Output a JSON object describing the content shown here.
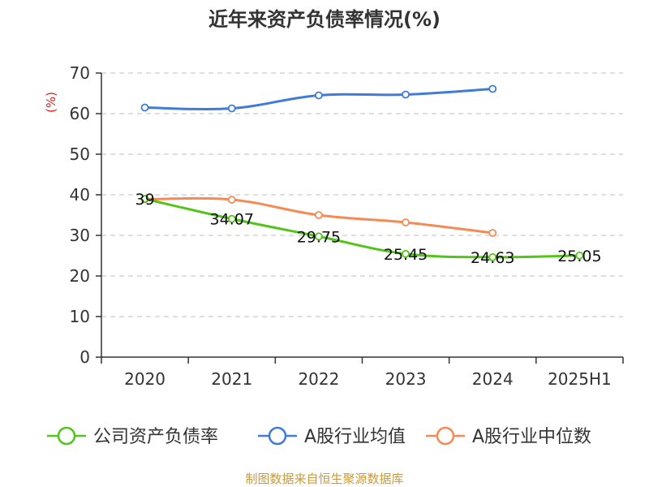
{
  "chart_data": {
    "type": "line",
    "title": "近年来资产负债率情况(%)",
    "ylabel": "(%)",
    "xlabel": "",
    "categories": [
      "2020",
      "2021",
      "2022",
      "2023",
      "2024",
      "2025H1"
    ],
    "ylim": [
      0,
      70
    ],
    "yticks": [
      0,
      10,
      20,
      30,
      40,
      50,
      60,
      70
    ],
    "grid": true,
    "legend_position": "bottom",
    "series": [
      {
        "name": "公司资产负债率",
        "color": "#52c41a",
        "values": [
          39,
          34.07,
          29.75,
          25.45,
          24.63,
          25.05
        ],
        "labels": [
          "39",
          "34.07",
          "29.75",
          "25.45",
          "24.63",
          "25.05"
        ],
        "show_labels": true,
        "stroke_width": 3
      },
      {
        "name": "A股行业均值",
        "color": "#3f7bd8",
        "values": [
          61.5,
          61.3,
          64.5,
          64.7,
          66.1,
          null
        ],
        "show_labels": false,
        "stroke_width": 3
      },
      {
        "name": "A股行业中位数",
        "color": "#f58a55",
        "values": [
          38.9,
          38.8,
          35.0,
          33.2,
          30.6,
          null
        ],
        "show_labels": false,
        "stroke_width": 3
      }
    ]
  },
  "footer": {
    "source": "制图数据来自恒生聚源数据库"
  }
}
